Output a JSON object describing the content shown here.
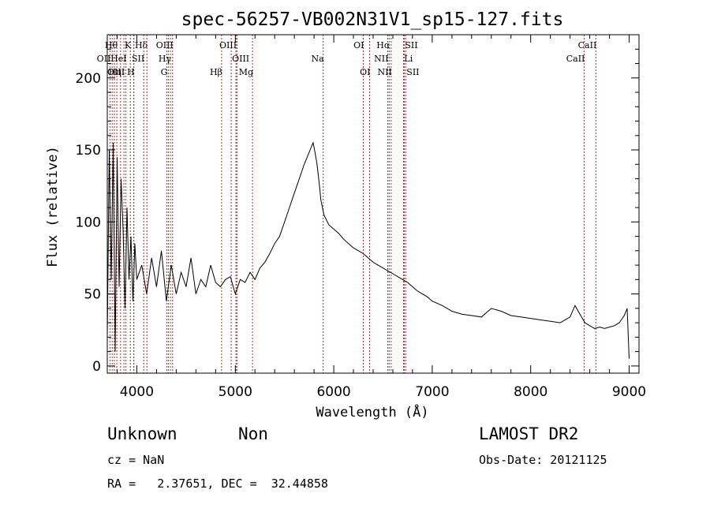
{
  "chart_data": {
    "type": "line",
    "title": "spec-56257-VB002N31V1_sp15-127.fits",
    "xlabel": "Wavelength (Å)",
    "ylabel": "Flux (relative)",
    "xlim": [
      3700,
      9100
    ],
    "ylim": [
      -5,
      230
    ],
    "xticks": [
      4000,
      5000,
      6000,
      7000,
      8000,
      9000
    ],
    "yticks": [
      0,
      50,
      100,
      150,
      200
    ],
    "grid": false,
    "line_color": "#000000",
    "marker_color": "#a03030",
    "spectrum": {
      "name": "",
      "x": [
        3700,
        3720,
        3740,
        3760,
        3780,
        3800,
        3820,
        3840,
        3860,
        3880,
        3900,
        3920,
        3940,
        3960,
        3980,
        4000,
        4050,
        4100,
        4150,
        4200,
        4250,
        4300,
        4350,
        4400,
        4450,
        4500,
        4550,
        4600,
        4650,
        4700,
        4750,
        4800,
        4850,
        4900,
        4950,
        5000,
        5050,
        5100,
        5150,
        5200,
        5250,
        5300,
        5350,
        5400,
        5450,
        5500,
        5550,
        5600,
        5650,
        5700,
        5730,
        5760,
        5790,
        5810,
        5830,
        5850,
        5870,
        5900,
        5950,
        6000,
        6050,
        6100,
        6150,
        6200,
        6250,
        6300,
        6350,
        6400,
        6450,
        6500,
        6550,
        6600,
        6650,
        6700,
        6750,
        6800,
        6850,
        6900,
        6950,
        7000,
        7100,
        7200,
        7300,
        7400,
        7500,
        7600,
        7700,
        7800,
        7900,
        8000,
        8100,
        8200,
        8300,
        8400,
        8450,
        8500,
        8550,
        8600,
        8650,
        8700,
        8750,
        8800,
        8850,
        8900,
        8950,
        8980,
        9000
      ],
      "y": [
        20,
        150,
        60,
        155,
        10,
        145,
        55,
        130,
        95,
        40,
        110,
        60,
        90,
        45,
        85,
        60,
        70,
        50,
        75,
        55,
        80,
        45,
        70,
        50,
        65,
        55,
        75,
        50,
        60,
        55,
        70,
        58,
        55,
        60,
        62,
        50,
        60,
        58,
        65,
        60,
        68,
        72,
        78,
        85,
        90,
        100,
        110,
        120,
        130,
        140,
        145,
        150,
        155,
        148,
        140,
        128,
        115,
        105,
        98,
        95,
        92,
        88,
        85,
        82,
        80,
        78,
        75,
        72,
        70,
        68,
        66,
        64,
        62,
        60,
        58,
        55,
        52,
        50,
        48,
        45,
        42,
        38,
        36,
        35,
        34,
        40,
        38,
        35,
        34,
        33,
        32,
        31,
        30,
        34,
        42,
        36,
        30,
        28,
        26,
        27,
        26,
        27,
        28,
        30,
        35,
        40,
        5
      ]
    },
    "lines": [
      {
        "label": "OII",
        "row": 2,
        "x": 3727,
        "ha": "end"
      },
      {
        "label": "Hθ",
        "row": 1,
        "x": 3797,
        "ha": "end"
      },
      {
        "label": "HeI",
        "row": 2,
        "x": 3889,
        "ha": "end"
      },
      {
        "label": "Hη",
        "row": 3,
        "x": 3835,
        "ha": "end"
      },
      {
        "label": "OIII",
        "row": 3,
        "x": 3869,
        "ha": "end"
      },
      {
        "label": "K",
        "row": 1,
        "x": 3934,
        "ha": "end"
      },
      {
        "label": "SII",
        "row": 2,
        "x": 4070,
        "ha": "end"
      },
      {
        "label": "H",
        "row": 3,
        "x": 3969,
        "ha": "end"
      },
      {
        "label": "Hδ",
        "row": 1,
        "x": 4102,
        "ha": "end"
      },
      {
        "label": "OIII",
        "row": 1,
        "x": 4363,
        "ha": "end"
      },
      {
        "label": "Hγ",
        "row": 2,
        "x": 4341,
        "ha": "end"
      },
      {
        "label": "G",
        "row": 3,
        "x": 4304,
        "ha": "end"
      },
      {
        "label": "Hβ",
        "row": 3,
        "x": 4861,
        "ha": "end"
      },
      {
        "label": "OIII",
        "row": 1,
        "x": 5007,
        "ha": "end"
      },
      {
        "label": "OIII",
        "row": 2,
        "x": 4959,
        "ha": "start"
      },
      {
        "label": "Mg",
        "row": 3,
        "x": 5175,
        "ha": "end"
      },
      {
        "label": "Na",
        "row": 2,
        "x": 5893,
        "ha": "end"
      },
      {
        "label": "OI",
        "row": 1,
        "x": 6300,
        "ha": "end"
      },
      {
        "label": "OI",
        "row": 3,
        "x": 6364,
        "ha": "end"
      },
      {
        "label": "Hα",
        "row": 1,
        "x": 6563,
        "ha": "end"
      },
      {
        "label": "NII",
        "row": 2,
        "x": 6548,
        "ha": "end"
      },
      {
        "label": "NII",
        "row": 3,
        "x": 6583,
        "ha": "end"
      },
      {
        "label": "SII",
        "row": 1,
        "x": 6716,
        "ha": "start"
      },
      {
        "label": "Li",
        "row": 2,
        "x": 6708,
        "ha": "start"
      },
      {
        "label": "SII",
        "row": 3,
        "x": 6731,
        "ha": "start"
      },
      {
        "label": "CaII",
        "row": 1,
        "x": 8662,
        "ha": "end"
      },
      {
        "label": "CaII",
        "row": 2,
        "x": 8542,
        "ha": "end"
      }
    ],
    "extra_markers": [
      3750,
      3771,
      3970,
      4070,
      4320,
      5016
    ]
  },
  "footer": {
    "object_class": "Unknown",
    "subclass": "Non",
    "survey": "LAMOST DR2",
    "cz": "cz = NaN",
    "obs_date": "Obs-Date: 20121125",
    "coords": "RA =   2.37651, DEC =  32.44858"
  }
}
